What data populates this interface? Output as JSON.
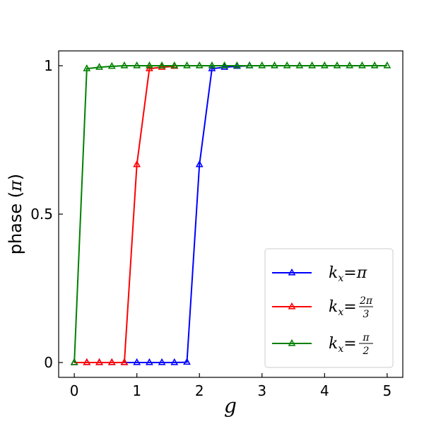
{
  "chart_data": {
    "type": "line",
    "xlabel": "g",
    "ylabel_prefix": "phase (",
    "ylabel_symbol": "π",
    "ylabel_suffix": ")",
    "xlim": [
      -0.25,
      5.25
    ],
    "ylim": [
      -0.05,
      1.05
    ],
    "xticks": [
      0,
      1,
      2,
      3,
      4,
      5
    ],
    "xtick_labels": [
      "0",
      "1",
      "2",
      "3",
      "4",
      "5"
    ],
    "yticks": [
      0,
      0.5,
      1
    ],
    "ytick_labels": [
      "0",
      "0.5",
      "1"
    ],
    "marker": "triangle-open",
    "legend_position": "lower-right",
    "series": [
      {
        "name": "kx = π",
        "color": "#0000ff",
        "x": [
          0,
          0.2,
          0.4,
          0.6,
          0.8,
          1.0,
          1.2,
          1.4,
          1.6,
          1.8,
          2.0,
          2.2,
          2.4,
          2.6,
          2.8
        ],
        "y": [
          0,
          0,
          0,
          0,
          0,
          0,
          0,
          0,
          0,
          0.001,
          0.667,
          0.99,
          0.995,
          0.998,
          1.0
        ]
      },
      {
        "name": "kx = 2π/3",
        "color": "#ff0000",
        "x": [
          0,
          0.2,
          0.4,
          0.6,
          0.8,
          1.0,
          1.2,
          1.4,
          1.6
        ],
        "y": [
          0,
          0,
          0,
          0,
          0,
          0.667,
          0.99,
          0.995,
          0.998
        ]
      },
      {
        "name": "kx = π/2",
        "color": "#008000",
        "x": [
          0,
          0.2,
          0.4,
          0.6,
          0.8,
          1.0,
          1.2,
          1.4,
          1.6,
          1.8,
          2.0,
          2.2,
          2.4,
          2.6,
          2.8,
          3.0,
          3.2,
          3.4,
          3.6,
          3.8,
          4.0,
          4.2,
          4.4,
          4.6,
          4.8,
          5.0
        ],
        "y": [
          0,
          0.99,
          0.995,
          0.998,
          1.0,
          1.0,
          1.0,
          1.0,
          1.0,
          1.0,
          1.0,
          1.0,
          1.0,
          1.0,
          1.0,
          1.0,
          1.0,
          1.0,
          1.0,
          1.0,
          1.0,
          1.0,
          1.0,
          1.0,
          1.0,
          1.0
        ]
      }
    ],
    "legend": [
      {
        "var": "k",
        "sub": "x",
        "eq": "=",
        "rhs": "π"
      },
      {
        "var": "k",
        "sub": "x",
        "eq": "=",
        "num": "2π",
        "den": "3"
      },
      {
        "var": "k",
        "sub": "x",
        "eq": "=",
        "num": "π",
        "den": "2"
      }
    ]
  }
}
